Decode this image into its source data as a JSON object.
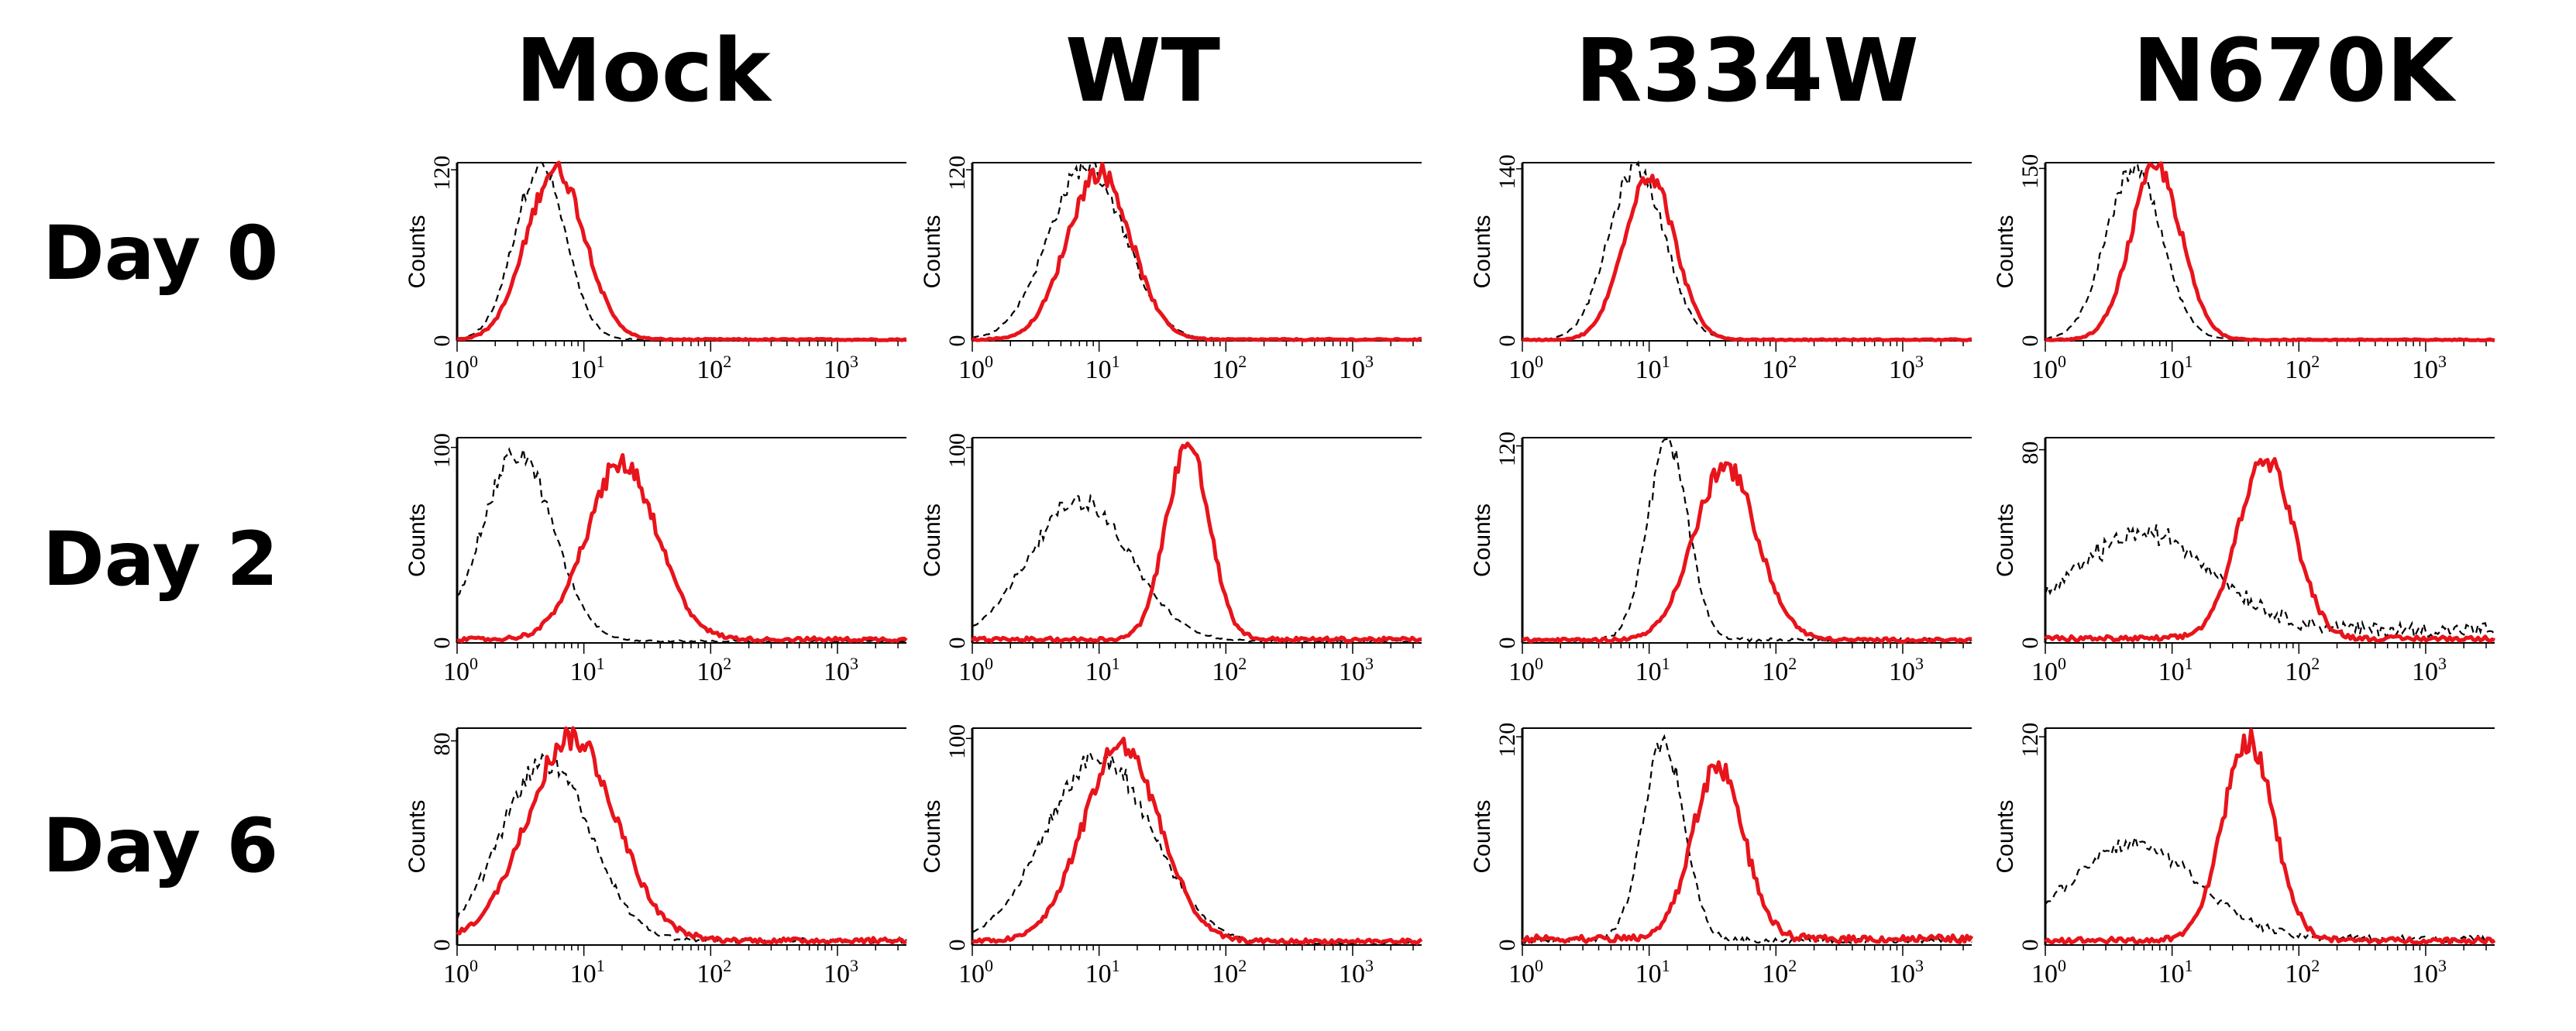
{
  "column_titles": [
    "Mock",
    "WT",
    "R334W",
    "N670K"
  ],
  "row_titles": [
    "Day 0",
    "Day 2",
    "Day 6"
  ],
  "colors": {
    "treated": "#e8141b",
    "control": "#000000"
  },
  "chart_data": {
    "type": "line",
    "title": "",
    "ylabel": "Counts",
    "xscale": "log",
    "xlim": [
      1,
      3500
    ],
    "x_ticks": [
      {
        "base": "10",
        "exp": "0"
      },
      {
        "base": "10",
        "exp": "1"
      },
      {
        "base": "10",
        "exp": "2"
      },
      {
        "base": "10",
        "exp": "3"
      }
    ],
    "series_styles": [
      {
        "name": "treated",
        "color": "#e8141b",
        "line": "solid"
      },
      {
        "name": "control",
        "color": "#000000",
        "line": "dashed"
      }
    ],
    "panels": [
      {
        "column": "Mock",
        "row": "Day 0",
        "ymax": 125,
        "ytick": "120",
        "treated": {
          "peak": 6,
          "width": 0.23,
          "height": 120,
          "floor": 1
        },
        "control": {
          "peak": 4.5,
          "width": 0.2,
          "height": 122,
          "floor": 1
        }
      },
      {
        "column": "WT",
        "row": "Day 0",
        "ymax": 125,
        "ytick": "120",
        "treated": {
          "peak": 10,
          "width": 0.25,
          "height": 118,
          "floor": 1
        },
        "control": {
          "peak": 8,
          "width": 0.3,
          "height": 122,
          "floor": 1
        }
      },
      {
        "column": "R334W",
        "row": "Day 0",
        "ymax": 145,
        "ytick": "140",
        "treated": {
          "peak": 10,
          "width": 0.2,
          "height": 135,
          "floor": 1
        },
        "control": {
          "peak": 8,
          "width": 0.22,
          "height": 140,
          "floor": 1
        }
      },
      {
        "column": "N670K",
        "row": "Day 0",
        "ymax": 155,
        "ytick": "150",
        "treated": {
          "peak": 7.5,
          "width": 0.2,
          "height": 150,
          "floor": 1
        },
        "control": {
          "peak": 5,
          "width": 0.22,
          "height": 148,
          "floor": 1
        }
      },
      {
        "column": "Mock",
        "row": "Day 2",
        "ymax": 105,
        "ytick": "100",
        "treated": {
          "peak": 20,
          "width": 0.28,
          "height": 90,
          "floor": 2
        },
        "control": {
          "peak": 3,
          "width": 0.28,
          "height": 96,
          "floor": 1
        }
      },
      {
        "column": "WT",
        "row": "Day 2",
        "ymax": 105,
        "ytick": "100",
        "treated": {
          "peak": 50,
          "width": 0.17,
          "height": 100,
          "floor": 2
        },
        "control": {
          "peak": 7,
          "width": 0.4,
          "height": 72,
          "floor": 1
        }
      },
      {
        "column": "R334W",
        "row": "Day 2",
        "ymax": 125,
        "ytick": "120",
        "treated": {
          "peak": 40,
          "width": 0.25,
          "height": 105,
          "floor": 2
        },
        "control": {
          "peak": 14,
          "width": 0.16,
          "height": 120,
          "floor": 2
        }
      },
      {
        "column": "N670K",
        "row": "Day 2",
        "ymax": 85,
        "ytick": "80",
        "treated": {
          "peak": 55,
          "width": 0.22,
          "height": 75,
          "floor": 2
        },
        "control": {
          "peak": 6,
          "width": 0.55,
          "height": 40,
          "floor": 6
        }
      },
      {
        "column": "Mock",
        "row": "Day 6",
        "ymax": 85,
        "ytick": "80",
        "treated": {
          "peak": 8,
          "width": 0.35,
          "height": 80,
          "floor": 2
        },
        "control": {
          "peak": 5,
          "width": 0.35,
          "height": 70,
          "floor": 2
        }
      },
      {
        "column": "WT",
        "row": "Day 6",
        "ymax": 105,
        "ytick": "100",
        "treated": {
          "peak": 15,
          "width": 0.3,
          "height": 95,
          "floor": 2
        },
        "control": {
          "peak": 10,
          "width": 0.42,
          "height": 90,
          "floor": 1
        }
      },
      {
        "column": "R334W",
        "row": "Day 6",
        "ymax": 125,
        "ytick": "120",
        "treated": {
          "peak": 35,
          "width": 0.2,
          "height": 100,
          "floor": 4
        },
        "control": {
          "peak": 13,
          "width": 0.16,
          "height": 115,
          "floor": 3
        }
      },
      {
        "column": "N670K",
        "row": "Day 6",
        "ymax": 125,
        "ytick": "120",
        "treated": {
          "peak": 40,
          "width": 0.2,
          "height": 115,
          "floor": 3
        },
        "control": {
          "peak": 5,
          "width": 0.5,
          "height": 55,
          "floor": 4
        }
      }
    ]
  }
}
